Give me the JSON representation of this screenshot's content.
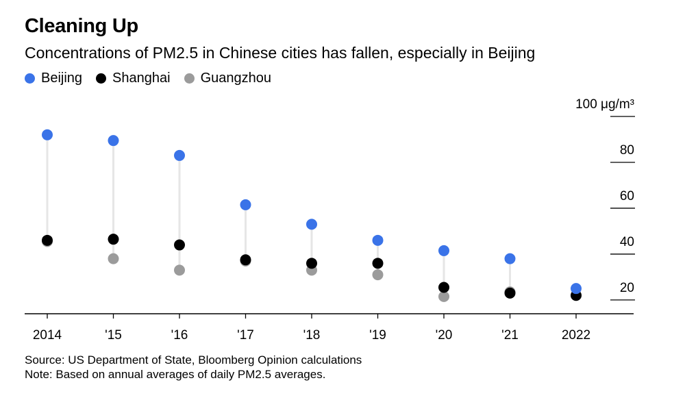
{
  "chart_data": {
    "type": "scatter",
    "title": "Cleaning Up",
    "subtitle": "Concentrations of PM2.5 in Chinese cities has fallen, especially in Beijing",
    "categories": [
      "2014",
      "'15",
      "'16",
      "'17",
      "'18",
      "'19",
      "'20",
      "'21",
      "2022"
    ],
    "series": [
      {
        "name": "Beijing",
        "color": "#3a73e8",
        "values": [
          92,
          89.5,
          83,
          61.5,
          53,
          46,
          41.5,
          38,
          25
        ]
      },
      {
        "name": "Shanghai",
        "color": "#000000",
        "values": [
          46,
          46.5,
          44,
          37.5,
          36,
          36,
          25.5,
          23,
          22
        ]
      },
      {
        "name": "Guangzhou",
        "color": "#9b9b9b",
        "values": [
          45.5,
          38,
          33,
          37,
          33,
          31,
          21.5,
          23.5,
          null
        ]
      }
    ],
    "y_ticks": [
      {
        "value": 100,
        "label": "100 μg/m³"
      },
      {
        "value": 80,
        "label": "80"
      },
      {
        "value": 60,
        "label": "60"
      },
      {
        "value": 40,
        "label": "40"
      },
      {
        "value": 20,
        "label": "20"
      }
    ],
    "ylim": [
      14,
      100
    ],
    "legend_position": "top-left"
  },
  "footer": {
    "source": "Source: US Department of State, Bloomberg Opinion calculations",
    "note": "Note: Based on annual averages of daily PM2.5 averages."
  }
}
